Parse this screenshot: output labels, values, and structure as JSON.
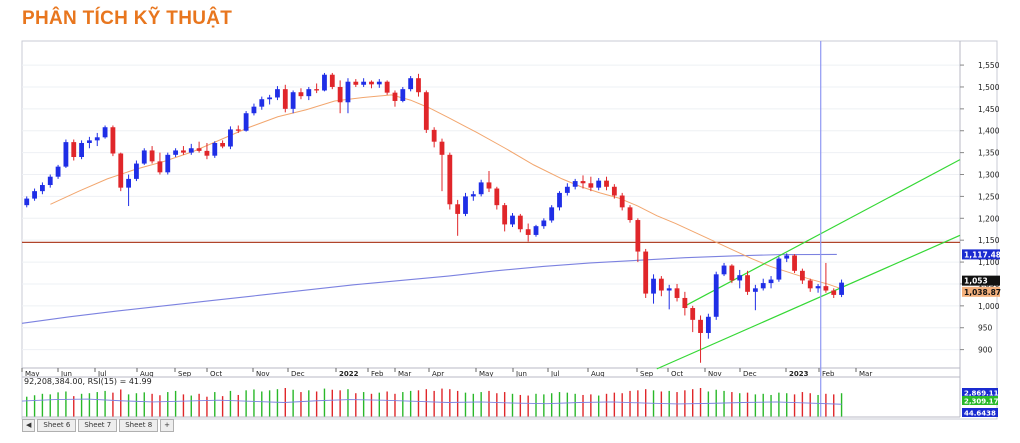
{
  "page": {
    "title": "PHÂN TÍCH KỸ THUẬT",
    "header_strip": "",
    "tabs": [
      "Sheet 6",
      "Sheet 7",
      "Sheet 8"
    ]
  },
  "colors": {
    "title": "#e8761e",
    "up_candle": "#1f2ee6",
    "down_candle": "#e0262a",
    "ma_short": "#f2a66e",
    "ma_long": "#7c82e0",
    "support_line": "#b0442a",
    "channel": "#35d835",
    "cursor": "#8f97f2",
    "vol_up": "#29b829",
    "vol_down": "#e0262a"
  },
  "chart_data": [
    {
      "type": "candlestick",
      "name": "price",
      "y_ticks": [
        900,
        950,
        1000,
        1050,
        1100,
        1150,
        1200,
        1250,
        1300,
        1350,
        1400,
        1450,
        1500,
        1550
      ],
      "y_tick_labels": [
        "900",
        "950",
        "1,000",
        "1,050",
        "1,100",
        "1,150",
        "1,200",
        "1,250",
        "1,300",
        "1,350",
        "1,400",
        "1,450",
        "1,500",
        "1,550"
      ],
      "ylim": [
        858,
        1605
      ],
      "x_index_range": [
        0,
        124
      ],
      "x_tick_positions": [
        1,
        9.6,
        18.2,
        26.8,
        35.3,
        43.9,
        52.5,
        61.1,
        67.2,
        73.3,
        82.9,
        89.6,
        97.6,
        106.2,
        113.6,
        120.1
      ],
      "x_tick_labels": [
        "May",
        "Jun",
        "Jul",
        "Aug",
        "Sep",
        "Oct",
        "Nov",
        "Dec",
        "2022",
        "Feb",
        "Mar",
        "Apr",
        "May",
        "Jun",
        "Jul",
        "Aug",
        "Sep",
        "Oct",
        "Nov",
        "Dec",
        "2023",
        "Feb",
        "Mar"
      ],
      "x_tick_all_positions": [
        1,
        9.6,
        18.2,
        26.8,
        35.3,
        43.9,
        52.5,
        61.1,
        67.2,
        73.3,
        79.4,
        85.6,
        97.0,
        103.4,
        111.0,
        119.6,
        128.2,
        136.8,
        145.3,
        152.0,
        160.1,
        166.8,
        172.8
      ],
      "candles": [
        {
          "o": 1230,
          "h": 1250,
          "l": 1225,
          "c": 1245
        },
        {
          "o": 1245,
          "h": 1268,
          "l": 1240,
          "c": 1262
        },
        {
          "o": 1262,
          "h": 1282,
          "l": 1255,
          "c": 1276
        },
        {
          "o": 1276,
          "h": 1300,
          "l": 1270,
          "c": 1295
        },
        {
          "o": 1295,
          "h": 1322,
          "l": 1290,
          "c": 1318
        },
        {
          "o": 1318,
          "h": 1380,
          "l": 1315,
          "c": 1374
        },
        {
          "o": 1374,
          "h": 1380,
          "l": 1332,
          "c": 1340
        },
        {
          "o": 1340,
          "h": 1378,
          "l": 1335,
          "c": 1372
        },
        {
          "o": 1372,
          "h": 1386,
          "l": 1360,
          "c": 1378
        },
        {
          "o": 1378,
          "h": 1395,
          "l": 1365,
          "c": 1385
        },
        {
          "o": 1385,
          "h": 1412,
          "l": 1382,
          "c": 1408
        },
        {
          "o": 1408,
          "h": 1412,
          "l": 1342,
          "c": 1348
        },
        {
          "o": 1348,
          "h": 1350,
          "l": 1262,
          "c": 1270
        },
        {
          "o": 1270,
          "h": 1300,
          "l": 1228,
          "c": 1290
        },
        {
          "o": 1290,
          "h": 1332,
          "l": 1285,
          "c": 1325
        },
        {
          "o": 1325,
          "h": 1360,
          "l": 1322,
          "c": 1355
        },
        {
          "o": 1355,
          "h": 1365,
          "l": 1325,
          "c": 1330
        },
        {
          "o": 1330,
          "h": 1350,
          "l": 1300,
          "c": 1305
        },
        {
          "o": 1305,
          "h": 1350,
          "l": 1300,
          "c": 1345
        },
        {
          "o": 1345,
          "h": 1360,
          "l": 1340,
          "c": 1355
        },
        {
          "o": 1355,
          "h": 1365,
          "l": 1345,
          "c": 1350
        },
        {
          "o": 1350,
          "h": 1370,
          "l": 1345,
          "c": 1360
        },
        {
          "o": 1360,
          "h": 1375,
          "l": 1350,
          "c": 1354
        },
        {
          "o": 1354,
          "h": 1372,
          "l": 1335,
          "c": 1343
        },
        {
          "o": 1343,
          "h": 1376,
          "l": 1338,
          "c": 1372
        },
        {
          "o": 1372,
          "h": 1378,
          "l": 1360,
          "c": 1364
        },
        {
          "o": 1364,
          "h": 1410,
          "l": 1358,
          "c": 1403
        },
        {
          "o": 1403,
          "h": 1412,
          "l": 1395,
          "c": 1400
        },
        {
          "o": 1400,
          "h": 1445,
          "l": 1398,
          "c": 1440
        },
        {
          "o": 1440,
          "h": 1462,
          "l": 1435,
          "c": 1455
        },
        {
          "o": 1455,
          "h": 1478,
          "l": 1448,
          "c": 1472
        },
        {
          "o": 1472,
          "h": 1482,
          "l": 1460,
          "c": 1476
        },
        {
          "o": 1476,
          "h": 1502,
          "l": 1470,
          "c": 1495
        },
        {
          "o": 1495,
          "h": 1505,
          "l": 1442,
          "c": 1450
        },
        {
          "o": 1450,
          "h": 1492,
          "l": 1440,
          "c": 1488
        },
        {
          "o": 1488,
          "h": 1497,
          "l": 1472,
          "c": 1479
        },
        {
          "o": 1479,
          "h": 1500,
          "l": 1470,
          "c": 1495
        },
        {
          "o": 1495,
          "h": 1508,
          "l": 1486,
          "c": 1492
        },
        {
          "o": 1492,
          "h": 1532,
          "l": 1490,
          "c": 1528
        },
        {
          "o": 1528,
          "h": 1532,
          "l": 1495,
          "c": 1500
        },
        {
          "o": 1500,
          "h": 1515,
          "l": 1440,
          "c": 1465
        },
        {
          "o": 1465,
          "h": 1520,
          "l": 1440,
          "c": 1512
        },
        {
          "o": 1512,
          "h": 1518,
          "l": 1500,
          "c": 1505
        },
        {
          "o": 1505,
          "h": 1520,
          "l": 1500,
          "c": 1512
        },
        {
          "o": 1512,
          "h": 1515,
          "l": 1497,
          "c": 1506
        },
        {
          "o": 1506,
          "h": 1518,
          "l": 1498,
          "c": 1512
        },
        {
          "o": 1512,
          "h": 1515,
          "l": 1482,
          "c": 1487
        },
        {
          "o": 1487,
          "h": 1492,
          "l": 1455,
          "c": 1468
        },
        {
          "o": 1468,
          "h": 1500,
          "l": 1465,
          "c": 1495
        },
        {
          "o": 1495,
          "h": 1525,
          "l": 1490,
          "c": 1520
        },
        {
          "o": 1520,
          "h": 1530,
          "l": 1478,
          "c": 1488
        },
        {
          "o": 1488,
          "h": 1492,
          "l": 1395,
          "c": 1402
        },
        {
          "o": 1402,
          "h": 1408,
          "l": 1362,
          "c": 1375
        },
        {
          "o": 1375,
          "h": 1382,
          "l": 1262,
          "c": 1345
        },
        {
          "o": 1345,
          "h": 1350,
          "l": 1220,
          "c": 1232
        },
        {
          "o": 1232,
          "h": 1242,
          "l": 1160,
          "c": 1210
        },
        {
          "o": 1210,
          "h": 1258,
          "l": 1205,
          "c": 1250
        },
        {
          "o": 1250,
          "h": 1262,
          "l": 1240,
          "c": 1255
        },
        {
          "o": 1255,
          "h": 1288,
          "l": 1250,
          "c": 1282
        },
        {
          "o": 1282,
          "h": 1308,
          "l": 1260,
          "c": 1268
        },
        {
          "o": 1268,
          "h": 1272,
          "l": 1220,
          "c": 1230
        },
        {
          "o": 1230,
          "h": 1235,
          "l": 1170,
          "c": 1186
        },
        {
          "o": 1186,
          "h": 1212,
          "l": 1180,
          "c": 1206
        },
        {
          "o": 1206,
          "h": 1210,
          "l": 1168,
          "c": 1175
        },
        {
          "o": 1175,
          "h": 1188,
          "l": 1147,
          "c": 1162
        },
        {
          "o": 1162,
          "h": 1185,
          "l": 1158,
          "c": 1182
        },
        {
          "o": 1182,
          "h": 1200,
          "l": 1176,
          "c": 1195
        },
        {
          "o": 1195,
          "h": 1230,
          "l": 1190,
          "c": 1225
        },
        {
          "o": 1225,
          "h": 1262,
          "l": 1218,
          "c": 1258
        },
        {
          "o": 1258,
          "h": 1280,
          "l": 1252,
          "c": 1272
        },
        {
          "o": 1272,
          "h": 1290,
          "l": 1266,
          "c": 1285
        },
        {
          "o": 1285,
          "h": 1298,
          "l": 1268,
          "c": 1280
        },
        {
          "o": 1280,
          "h": 1295,
          "l": 1262,
          "c": 1270
        },
        {
          "o": 1270,
          "h": 1292,
          "l": 1264,
          "c": 1286
        },
        {
          "o": 1286,
          "h": 1295,
          "l": 1264,
          "c": 1272
        },
        {
          "o": 1272,
          "h": 1278,
          "l": 1245,
          "c": 1252
        },
        {
          "o": 1252,
          "h": 1258,
          "l": 1218,
          "c": 1225
        },
        {
          "o": 1225,
          "h": 1230,
          "l": 1190,
          "c": 1196
        },
        {
          "o": 1196,
          "h": 1200,
          "l": 1100,
          "c": 1124
        },
        {
          "o": 1124,
          "h": 1130,
          "l": 1018,
          "c": 1028
        },
        {
          "o": 1028,
          "h": 1072,
          "l": 1005,
          "c": 1062
        },
        {
          "o": 1062,
          "h": 1068,
          "l": 1022,
          "c": 1035
        },
        {
          "o": 1035,
          "h": 1048,
          "l": 992,
          "c": 1040
        },
        {
          "o": 1040,
          "h": 1050,
          "l": 1010,
          "c": 1018
        },
        {
          "o": 1018,
          "h": 1032,
          "l": 978,
          "c": 995
        },
        {
          "o": 995,
          "h": 1000,
          "l": 940,
          "c": 968
        },
        {
          "o": 968,
          "h": 978,
          "l": 870,
          "c": 938
        },
        {
          "o": 938,
          "h": 982,
          "l": 925,
          "c": 975
        },
        {
          "o": 975,
          "h": 1078,
          "l": 968,
          "c": 1072
        },
        {
          "o": 1072,
          "h": 1098,
          "l": 1068,
          "c": 1092
        },
        {
          "o": 1092,
          "h": 1095,
          "l": 1052,
          "c": 1058
        },
        {
          "o": 1058,
          "h": 1082,
          "l": 1040,
          "c": 1070
        },
        {
          "o": 1070,
          "h": 1080,
          "l": 1025,
          "c": 1032
        },
        {
          "o": 1032,
          "h": 1048,
          "l": 990,
          "c": 1040
        },
        {
          "o": 1040,
          "h": 1062,
          "l": 1035,
          "c": 1052
        },
        {
          "o": 1052,
          "h": 1068,
          "l": 1040,
          "c": 1060
        },
        {
          "o": 1060,
          "h": 1112,
          "l": 1055,
          "c": 1108
        },
        {
          "o": 1108,
          "h": 1120,
          "l": 1100,
          "c": 1115
        },
        {
          "o": 1115,
          "h": 1118,
          "l": 1075,
          "c": 1080
        },
        {
          "o": 1080,
          "h": 1085,
          "l": 1050,
          "c": 1058
        },
        {
          "o": 1058,
          "h": 1062,
          "l": 1032,
          "c": 1040
        },
        {
          "o": 1040,
          "h": 1050,
          "l": 1030,
          "c": 1045
        },
        {
          "o": 1045,
          "h": 1098,
          "l": 1030,
          "c": 1035
        },
        {
          "o": 1035,
          "h": 1040,
          "l": 1018,
          "c": 1025
        },
        {
          "o": 1025,
          "h": 1060,
          "l": 1020,
          "c": 1053
        }
      ],
      "lines": {
        "support": 1145,
        "ma_long": [
          [
            0,
            960
          ],
          [
            10,
            975
          ],
          [
            20,
            988
          ],
          [
            30,
            1000
          ],
          [
            40,
            1012
          ],
          [
            50,
            1024
          ],
          [
            60,
            1036
          ],
          [
            70,
            1048
          ],
          [
            80,
            1058
          ],
          [
            90,
            1068
          ],
          [
            100,
            1080
          ],
          [
            110,
            1090
          ],
          [
            120,
            1098
          ],
          [
            130,
            1104
          ],
          [
            140,
            1110
          ],
          [
            150,
            1114
          ],
          [
            160,
            1117
          ],
          [
            172,
            1117.48
          ]
        ],
        "ma_short": [
          [
            6,
            1232
          ],
          [
            12,
            1262
          ],
          [
            18,
            1290
          ],
          [
            24,
            1312
          ],
          [
            30,
            1330
          ],
          [
            36,
            1352
          ],
          [
            42,
            1380
          ],
          [
            48,
            1408
          ],
          [
            54,
            1432
          ],
          [
            60,
            1448
          ],
          [
            66,
            1468
          ],
          [
            72,
            1476
          ],
          [
            78,
            1482
          ],
          [
            82,
            1470
          ],
          [
            86,
            1452
          ],
          [
            90,
            1430
          ],
          [
            96,
            1396
          ],
          [
            102,
            1360
          ],
          [
            108,
            1322
          ],
          [
            114,
            1290
          ],
          [
            118,
            1272
          ],
          [
            122,
            1258
          ],
          [
            126,
            1246
          ],
          [
            130,
            1228
          ],
          [
            134,
            1206
          ],
          [
            138,
            1188
          ],
          [
            142,
            1168
          ],
          [
            146,
            1148
          ],
          [
            150,
            1128
          ],
          [
            154,
            1108
          ],
          [
            158,
            1090
          ],
          [
            162,
            1076
          ],
          [
            166,
            1062
          ],
          [
            170,
            1050
          ],
          [
            173,
            1038.87
          ]
        ],
        "channel_upper": [
          [
            140,
            1000
          ],
          [
            198,
            1334
          ]
        ],
        "channel_lower": [
          [
            134,
            856
          ],
          [
            198,
            1161
          ]
        ],
        "cursor_x": 168.6
      },
      "price_labels": [
        {
          "value": 1117.48,
          "text": "1,117.48",
          "bg": "#1a2bd0",
          "fg": "#ffffff"
        },
        {
          "value": 1053,
          "text": "1,053",
          "bg": "#111111",
          "fg": "#ffffff"
        },
        {
          "value": 1038.87,
          "text": "1,038.87",
          "bg": "#f3b07c",
          "fg": "#111111"
        }
      ]
    },
    {
      "type": "bar",
      "name": "volume_rsi",
      "header": "92,208,384.00, RSI(15) = 41.99",
      "volume_ratios": [
        0.7,
        0.75,
        0.8,
        0.78,
        0.85,
        0.88,
        0.72,
        0.8,
        0.82,
        0.86,
        0.9,
        0.84,
        0.95,
        0.78,
        0.82,
        0.85,
        0.8,
        0.75,
        0.86,
        0.9,
        0.78,
        0.74,
        0.8,
        0.7,
        0.86,
        0.72,
        0.9,
        0.76,
        0.92,
        0.95,
        0.88,
        0.92,
        0.96,
        1.0,
        0.94,
        0.86,
        0.92,
        0.88,
        0.98,
        0.94,
        0.92,
        0.96,
        0.82,
        0.86,
        0.8,
        0.84,
        0.88,
        0.8,
        0.86,
        0.9,
        0.92,
        0.96,
        0.9,
        0.98,
        0.96,
        0.9,
        0.84,
        0.8,
        0.86,
        0.9,
        0.82,
        0.86,
        0.8,
        0.76,
        0.74,
        0.8,
        0.78,
        0.82,
        0.86,
        0.84,
        0.8,
        0.76,
        0.78,
        0.74,
        0.8,
        0.84,
        0.82,
        0.9,
        0.92,
        0.96,
        0.92,
        0.88,
        0.9,
        0.86,
        0.92,
        0.96,
        1.0,
        0.88,
        0.94,
        0.9,
        0.86,
        0.82,
        0.84,
        0.78,
        0.8,
        0.76,
        0.84,
        0.82,
        0.78,
        0.86,
        0.82,
        0.76,
        0.8,
        0.78,
        0.82
      ],
      "rsi_line": [
        0.55,
        0.6,
        0.62,
        0.56,
        0.52,
        0.55,
        0.58,
        0.54,
        0.5,
        0.56,
        0.6,
        0.58,
        0.54,
        0.5,
        0.52,
        0.48,
        0.46,
        0.5,
        0.52,
        0.48,
        0.45,
        0.47,
        0.5,
        0.52,
        0.48,
        0.44
      ],
      "right_labels": [
        {
          "text": "2,869.11",
          "bg": "#1a2bd0",
          "fg": "#ffffff"
        },
        {
          "text": "2,309.17",
          "bg": "#29b829",
          "fg": "#ffffff"
        },
        {
          "text": "44.6438",
          "bg": "#1a2bd0",
          "fg": "#ffffff"
        }
      ]
    }
  ]
}
